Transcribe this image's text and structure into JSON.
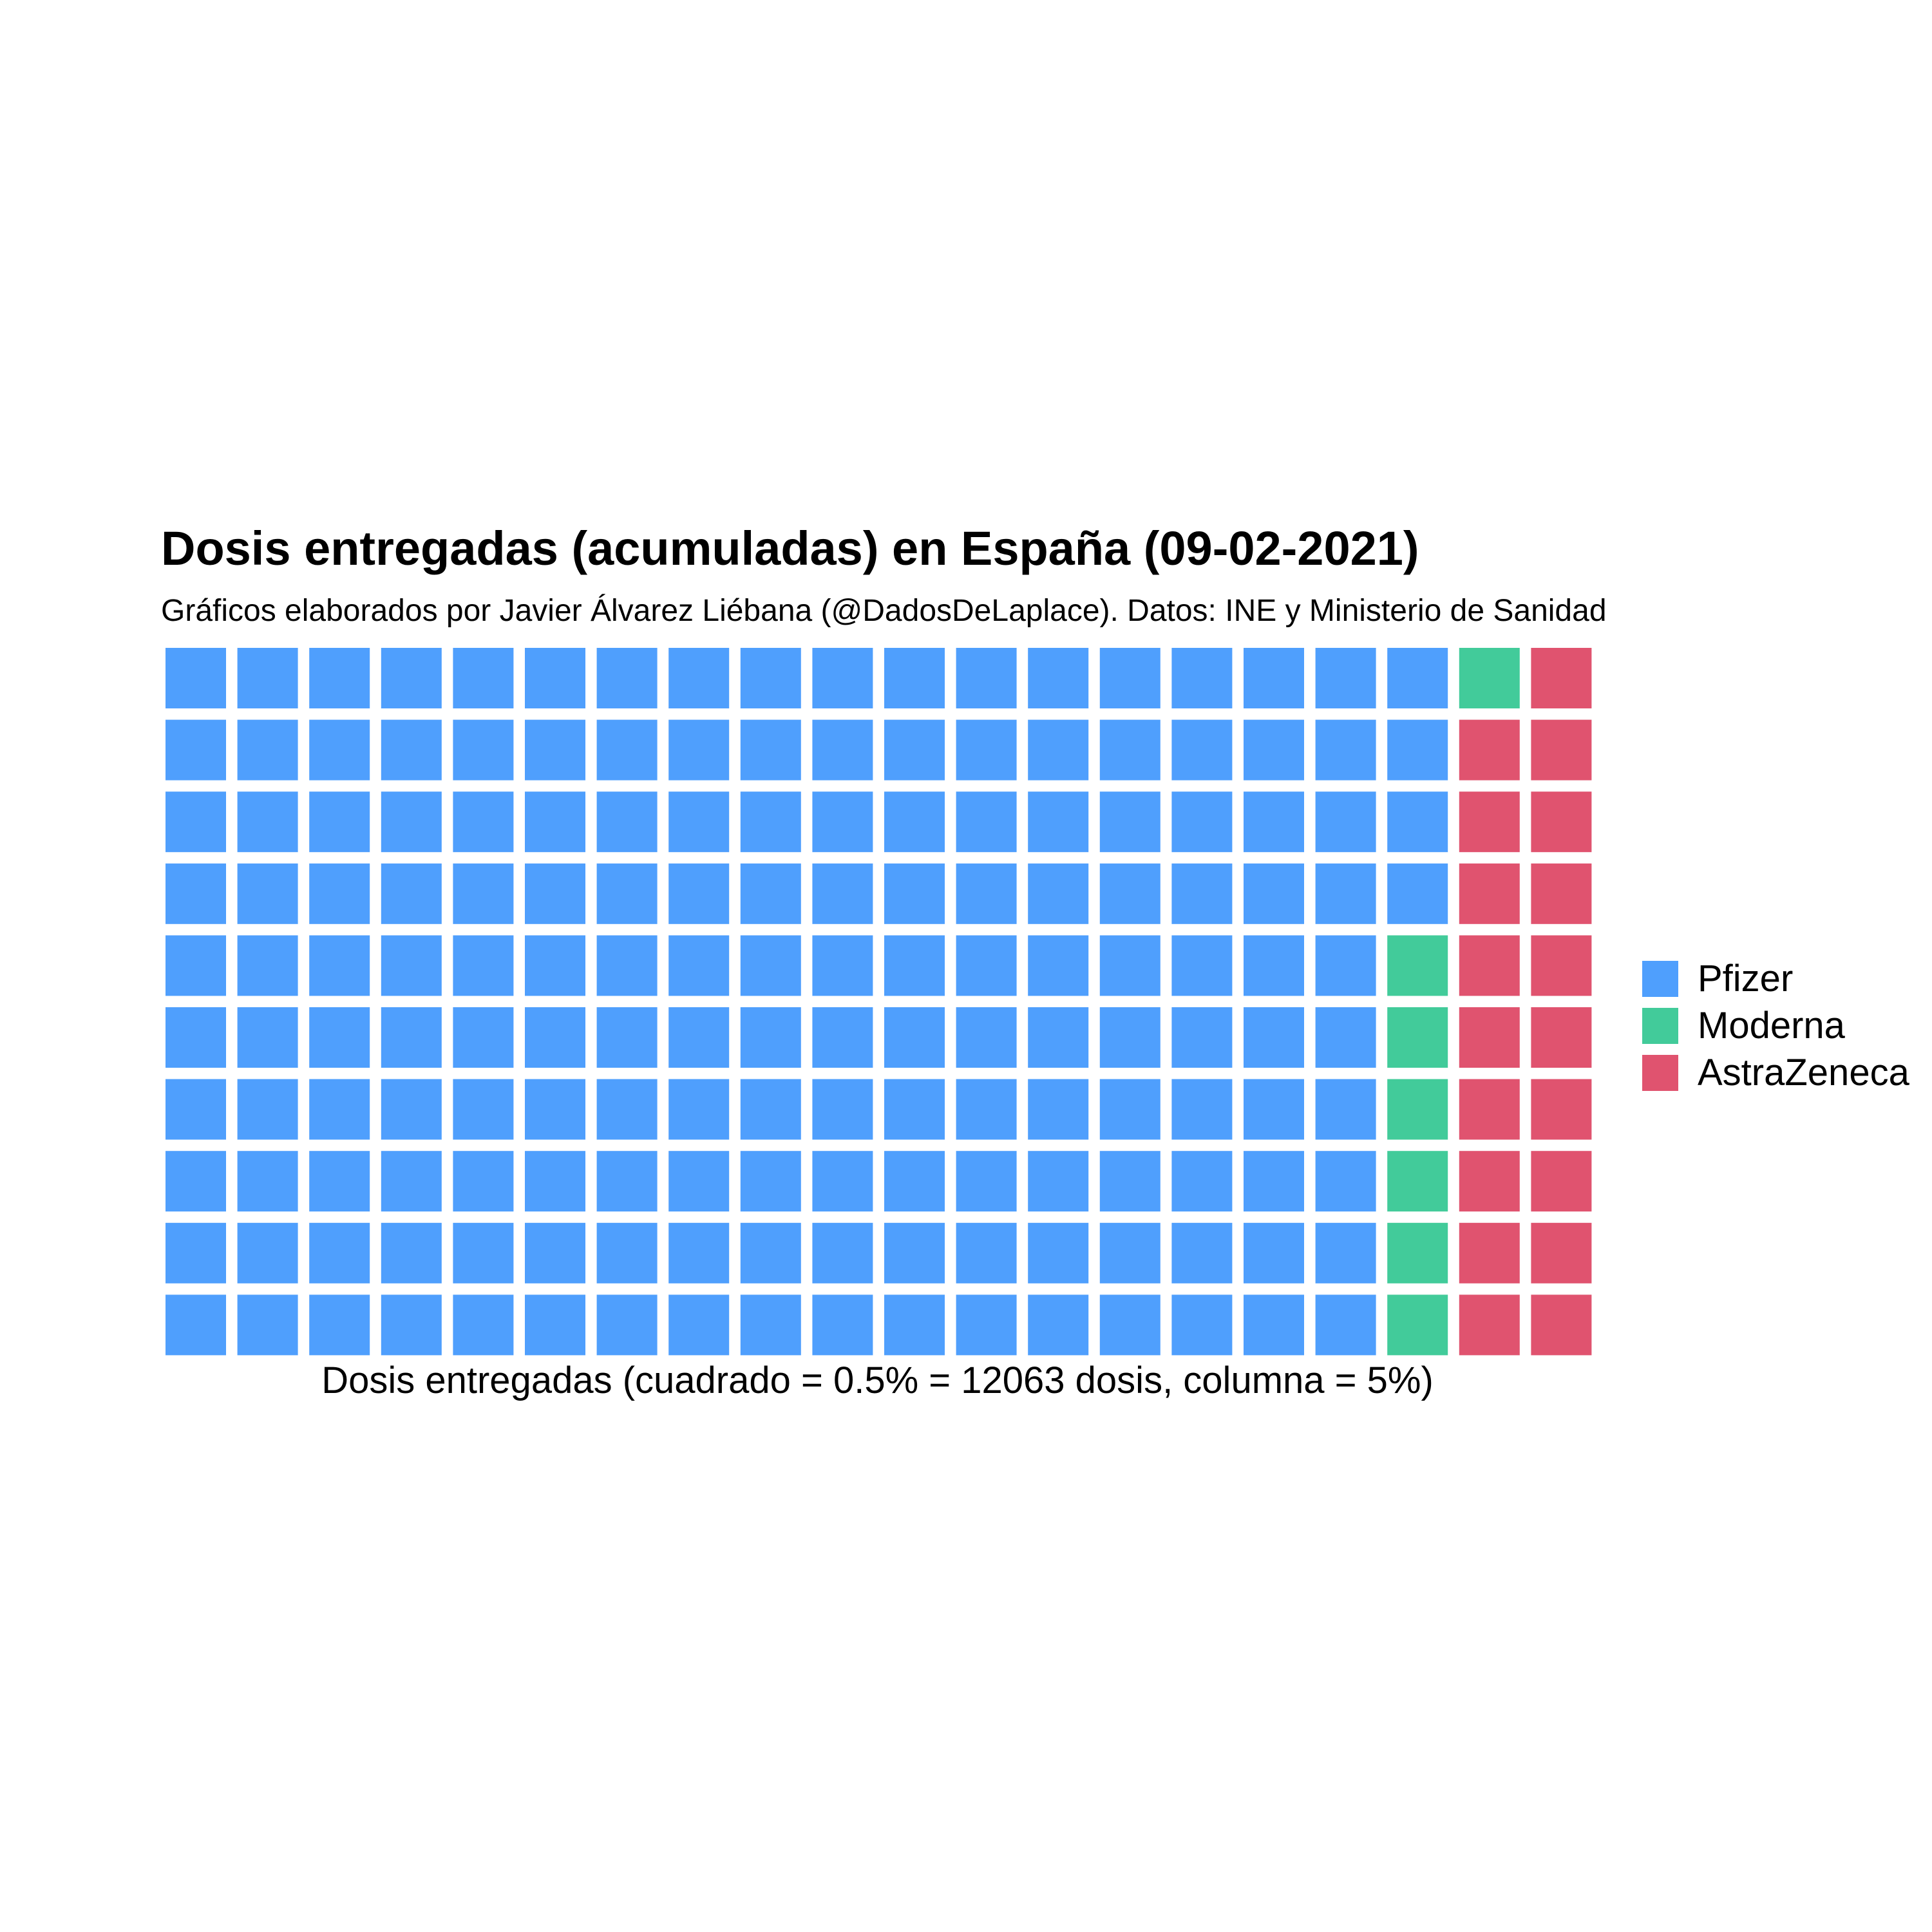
{
  "chart_data": {
    "type": "waffle",
    "title": "Dosis entregadas (acumuladas) en España (09-02-2021)",
    "subtitle": "Gráficos elaborados por Javier Álvarez Liébana (@DadosDeLaplace). Datos: INE y Ministerio de Sanidad",
    "xlabel": "Dosis entregadas (cuadrado = 0.5% = 12063 dosis, columna = 5%)",
    "rows": 10,
    "columns": 20,
    "legend_position": "right",
    "series": [
      {
        "name": "Pfizer",
        "squares": 174,
        "color": "#4f9ffd"
      },
      {
        "name": "Moderna",
        "squares": 7,
        "color": "#42cb9a"
      },
      {
        "name": "AstraZeneca",
        "squares": 19,
        "color": "#e0536f"
      }
    ]
  }
}
